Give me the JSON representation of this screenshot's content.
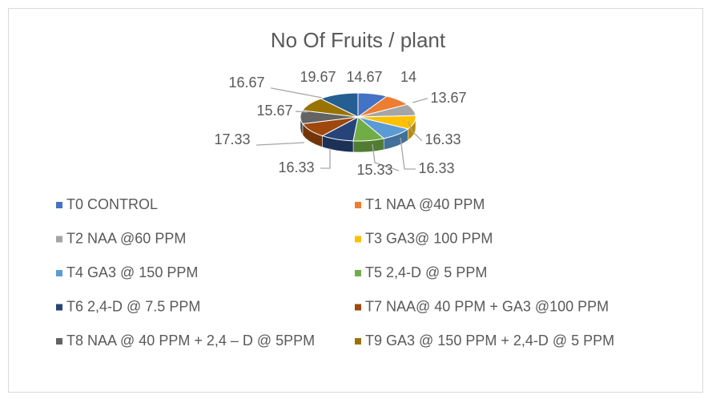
{
  "chart_data": {
    "type": "pie3d",
    "title": "No Of Fruits / plant",
    "categories": [
      "T0 CONTROL",
      "T1 NAA @40 PPM",
      "T2 NAA @60 PPM",
      "T3 GA3@ 100 PPM",
      "T4 GA3 @ 150 PPM",
      "T5 2,4-D @ 5 PPM",
      "T6 2,4-D @ 7.5 PPM",
      "T7 NAA@ 40 PPM + GA3 @100 PPM",
      "T8 NAA @ 40 PPM + 2,4 – D @ 5PPM",
      "T9 GA3 @ 150 PPM + 2,4-D @ 5 PPM",
      null
    ],
    "values": [
      14.67,
      14,
      13.67,
      16.33,
      16.33,
      15.33,
      16.33,
      17.33,
      15.67,
      16.67,
      19.67
    ],
    "colors": [
      "#4472c4",
      "#ed7d31",
      "#a5a5a5",
      "#ffc000",
      "#5b9bd5",
      "#70ad47",
      "#264478",
      "#9e480e",
      "#636363",
      "#997300",
      "#255e91"
    ],
    "legend": "bottom"
  }
}
